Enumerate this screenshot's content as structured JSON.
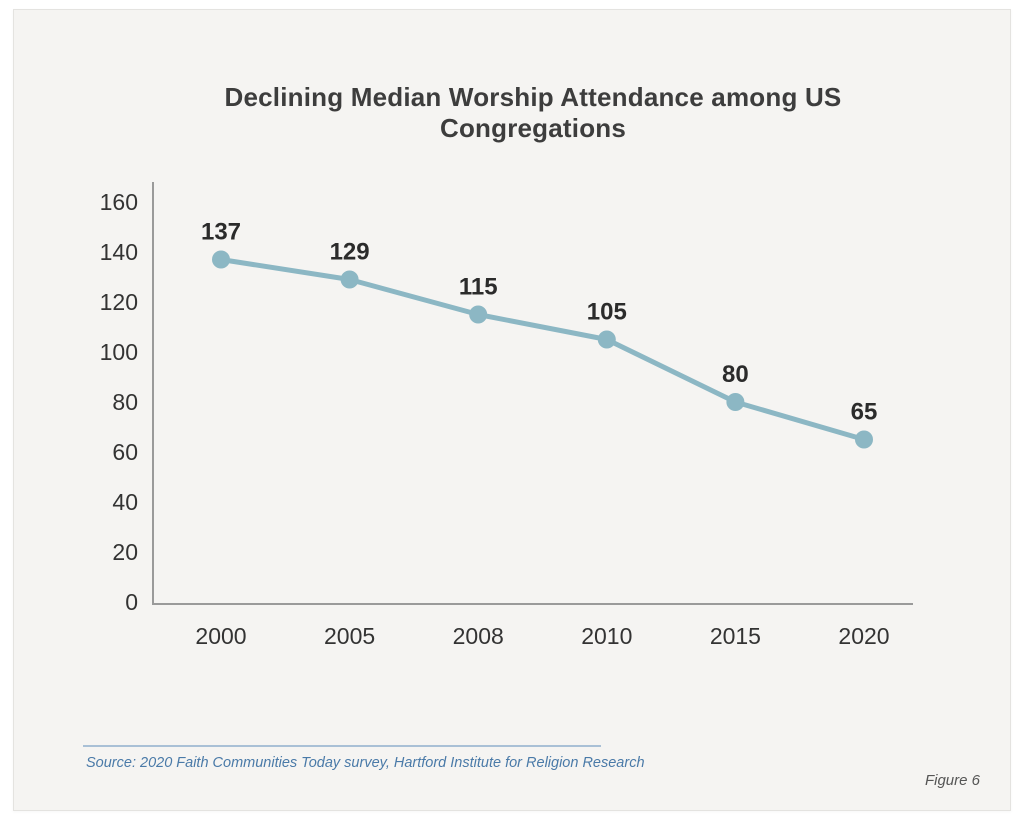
{
  "colors": {
    "page_bg": "#ffffff",
    "card_bg": "#f5f4f2",
    "card_border": "#e4e3e0",
    "title_color": "#3d3d3d",
    "tick_color": "#333333",
    "data_label_color": "#2b2b2b",
    "line_color": "#8cb7c4",
    "marker_color": "#8cb7c4",
    "axis_color": "#9a9a9a",
    "source_color": "#4a7aa8",
    "rule_color": "#a9c0d6",
    "figure_label_color": "#555555"
  },
  "figure": {
    "title": "Declining Median Worship Attendance among US Congregations",
    "source": "Source: 2020 Faith Communities Today survey, Hartford Institute for Religion Research",
    "figure_label": "Figure 6"
  },
  "chart_data": {
    "type": "line",
    "title": "Declining Median Worship Attendance among US Congregations",
    "categories": [
      "2000",
      "2005",
      "2008",
      "2010",
      "2015",
      "2020"
    ],
    "values": [
      137,
      129,
      115,
      105,
      80,
      65
    ],
    "xlabel": "",
    "ylabel": "",
    "ylim": [
      0,
      160
    ],
    "yticks": [
      0,
      20,
      40,
      60,
      80,
      100,
      120,
      140,
      160
    ],
    "grid": false,
    "legend": "none",
    "data_labels_visible": true
  }
}
